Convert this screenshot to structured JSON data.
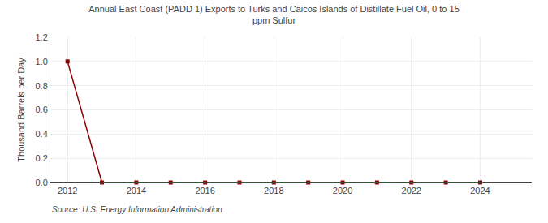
{
  "chart_data": {
    "type": "line",
    "title": "Annual East Coast (PADD 1) Exports to Turks and Caicos Islands of Distillate Fuel Oil, 0 to 15\nppm Sulfur",
    "y_label": "Thousand Barrels per Day",
    "annotations": [
      "Source: U.S. Energy Information Administration"
    ],
    "x": [
      2012,
      2013,
      2014,
      2015,
      2016,
      2017,
      2018,
      2019,
      2020,
      2021,
      2022,
      2023,
      2024
    ],
    "values": [
      1.0,
      0.0,
      0.0,
      0.0,
      0.0,
      0.0,
      0.0,
      0.0,
      0.0,
      0.0,
      0.0,
      0.0,
      0.0
    ],
    "color": "#8b0000",
    "marker": "square",
    "line_style": "solid",
    "xlim": [
      2011.5,
      2025.5
    ],
    "xticks": [
      2012,
      2014,
      2016,
      2018,
      2020,
      2022,
      2024
    ],
    "ylim": [
      0.0,
      1.2
    ],
    "yticks": [
      {
        "value": 0.0,
        "label": "0.0"
      },
      0.2,
      0.4,
      0.6,
      0.8,
      {
        "value": 1.0,
        "label": "1.0"
      },
      1.2
    ],
    "grid": true
  }
}
